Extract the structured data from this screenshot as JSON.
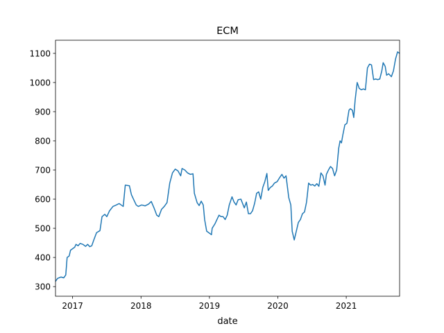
{
  "chart_data": {
    "type": "line",
    "title": "ECM",
    "x_label": "date",
    "xlim": [
      2016.75,
      2021.78
    ],
    "xticks": [
      2017,
      2018,
      2019,
      2020,
      2021
    ],
    "ylim": [
      267,
      1145
    ],
    "yticks": [
      300,
      400,
      500,
      600,
      700,
      800,
      900,
      1000,
      1100
    ],
    "grid": false,
    "series": [
      {
        "name": "ECM",
        "color": "#1f77b4",
        "x": [
          2016.75,
          2016.78,
          2016.83,
          2016.87,
          2016.9,
          2016.92,
          2016.95,
          2016.97,
          2017.0,
          2017.03,
          2017.05,
          2017.08,
          2017.11,
          2017.15,
          2017.19,
          2017.22,
          2017.25,
          2017.28,
          2017.31,
          2017.35,
          2017.4,
          2017.43,
          2017.47,
          2017.5,
          2017.54,
          2017.59,
          2017.64,
          2017.68,
          2017.71,
          2017.74,
          2017.77,
          2017.83,
          2017.86,
          2017.89,
          2017.93,
          2017.96,
          2018.01,
          2018.06,
          2018.11,
          2018.15,
          2018.19,
          2018.23,
          2018.26,
          2018.3,
          2018.34,
          2018.38,
          2018.42,
          2018.46,
          2018.5,
          2018.54,
          2018.58,
          2018.6,
          2018.64,
          2018.68,
          2018.72,
          2018.76,
          2018.78,
          2018.82,
          2018.85,
          2018.88,
          2018.91,
          2018.93,
          2018.96,
          2018.99,
          2019.03,
          2019.04,
          2019.08,
          2019.11,
          2019.14,
          2019.17,
          2019.2,
          2019.23,
          2019.26,
          2019.29,
          2019.33,
          2019.36,
          2019.39,
          2019.42,
          2019.46,
          2019.51,
          2019.54,
          2019.57,
          2019.6,
          2019.63,
          2019.66,
          2019.69,
          2019.72,
          2019.75,
          2019.78,
          2019.81,
          2019.84,
          2019.86,
          2019.89,
          2019.92,
          2019.95,
          2019.99,
          2020.03,
          2020.06,
          2020.09,
          2020.12,
          2020.16,
          2020.19,
          2020.21,
          2020.24,
          2020.27,
          2020.3,
          2020.33,
          2020.36,
          2020.39,
          2020.42,
          2020.45,
          2020.48,
          2020.51,
          2020.54,
          2020.57,
          2020.6,
          2020.63,
          2020.66,
          2020.69,
          2020.71,
          2020.74,
          2020.77,
          2020.8,
          2020.83,
          2020.86,
          2020.89,
          2020.91,
          2020.93,
          2020.95,
          2020.98,
          2021.01,
          2021.04,
          2021.06,
          2021.09,
          2021.11,
          2021.13,
          2021.16,
          2021.19,
          2021.22,
          2021.25,
          2021.28,
          2021.31,
          2021.34,
          2021.37,
          2021.4,
          2021.43,
          2021.46,
          2021.49,
          2021.52,
          2021.54,
          2021.57,
          2021.59,
          2021.62,
          2021.66,
          2021.69,
          2021.72,
          2021.75,
          2021.78
        ],
        "values": [
          318,
          328,
          333,
          330,
          340,
          400,
          405,
          425,
          430,
          435,
          445,
          440,
          448,
          445,
          438,
          445,
          437,
          440,
          460,
          485,
          492,
          540,
          548,
          540,
          560,
          575,
          580,
          585,
          580,
          575,
          648,
          646,
          615,
          600,
          580,
          575,
          580,
          577,
          583,
          592,
          570,
          545,
          540,
          565,
          575,
          588,
          655,
          690,
          703,
          697,
          680,
          705,
          700,
          690,
          685,
          687,
          620,
          588,
          578,
          593,
          580,
          530,
          490,
          485,
          478,
          500,
          515,
          530,
          545,
          540,
          540,
          530,
          545,
          580,
          608,
          590,
          580,
          598,
          600,
          570,
          590,
          550,
          550,
          560,
          585,
          620,
          625,
          600,
          640,
          660,
          688,
          630,
          640,
          645,
          655,
          660,
          675,
          685,
          672,
          680,
          605,
          580,
          490,
          460,
          490,
          520,
          530,
          550,
          556,
          590,
          655,
          648,
          650,
          645,
          653,
          644,
          690,
          680,
          648,
          685,
          700,
          712,
          705,
          680,
          700,
          775,
          800,
          793,
          820,
          855,
          860,
          905,
          910,
          905,
          880,
          940,
          1000,
          980,
          975,
          978,
          975,
          1050,
          1063,
          1060,
          1010,
          1012,
          1010,
          1012,
          1040,
          1068,
          1055,
          1025,
          1030,
          1020,
          1040,
          1080,
          1105,
          1100
        ]
      }
    ]
  }
}
